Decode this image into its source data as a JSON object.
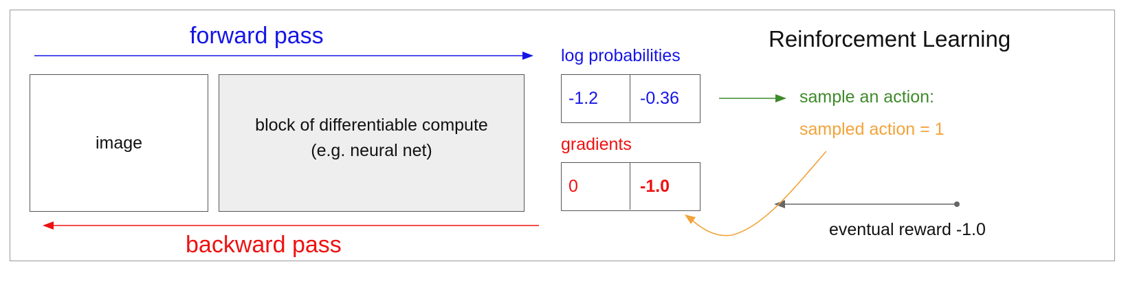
{
  "title": "Reinforcement Learning",
  "forward_label": "forward pass",
  "backward_label": "backward pass",
  "image_box": {
    "label": "image"
  },
  "compute_box": {
    "line1": "block of differentiable compute",
    "line2": "(e.g. neural net)"
  },
  "log_probs": {
    "label": "log probabilities",
    "values": [
      "-1.2",
      "-0.36"
    ]
  },
  "gradients": {
    "label": "gradients",
    "values": [
      "0",
      "-1.0"
    ]
  },
  "sample_text": "sample an action:",
  "sampled_text": "sampled action = 1",
  "reward_text": "eventual reward -1.0",
  "colors": {
    "forward": "#1515e6",
    "backward": "#ee1111",
    "sample": "#3f8a2a",
    "sampled": "#f2a33a",
    "reward": "#555555",
    "compute_fill": "#eeeeee"
  }
}
